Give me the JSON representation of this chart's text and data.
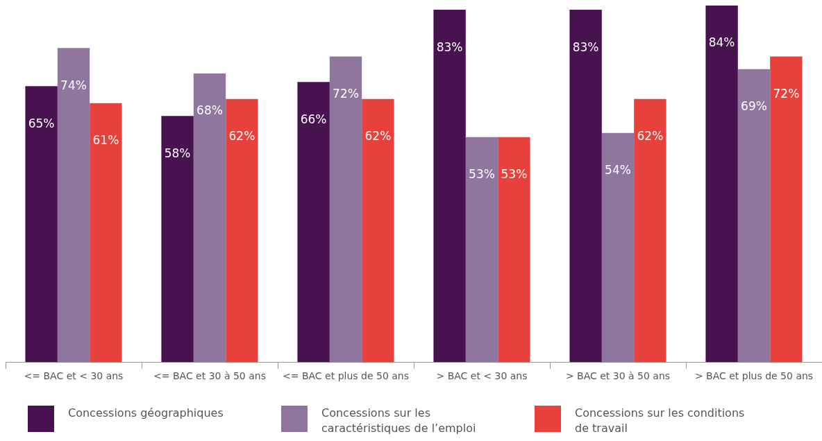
{
  "chart_data": {
    "type": "bar",
    "categories": [
      "<= BAC et < 30 ans",
      "<= BAC et 30 à 50 ans",
      "<= BAC et plus de 50 ans",
      "> BAC et < 30 ans",
      "> BAC et 30 à 50 ans",
      "> BAC et plus de 50 ans"
    ],
    "series": [
      {
        "name": "Concessions géographiques",
        "color": "#48114f",
        "values": [
          65,
          58,
          66,
          83,
          83,
          84
        ],
        "value_labels": [
          "65%",
          "58%",
          "66%",
          "83%",
          "83%",
          "84%"
        ]
      },
      {
        "name": "Concessions sur les caractéristiques de l’emploi",
        "color": "#8e769e",
        "values": [
          74,
          68,
          72,
          53,
          54,
          69
        ],
        "value_labels": [
          "74%",
          "68%",
          "72%",
          "53%",
          "54%",
          "69%"
        ]
      },
      {
        "name": "Concessions sur les conditions de travail",
        "color": "#e8413b",
        "values": [
          61,
          62,
          62,
          53,
          62,
          72
        ],
        "value_labels": [
          "61%",
          "62%",
          "62%",
          "53%",
          "62%",
          "72%"
        ]
      }
    ],
    "legend": "bottom",
    "grid": false,
    "tick_labels": "x"
  }
}
